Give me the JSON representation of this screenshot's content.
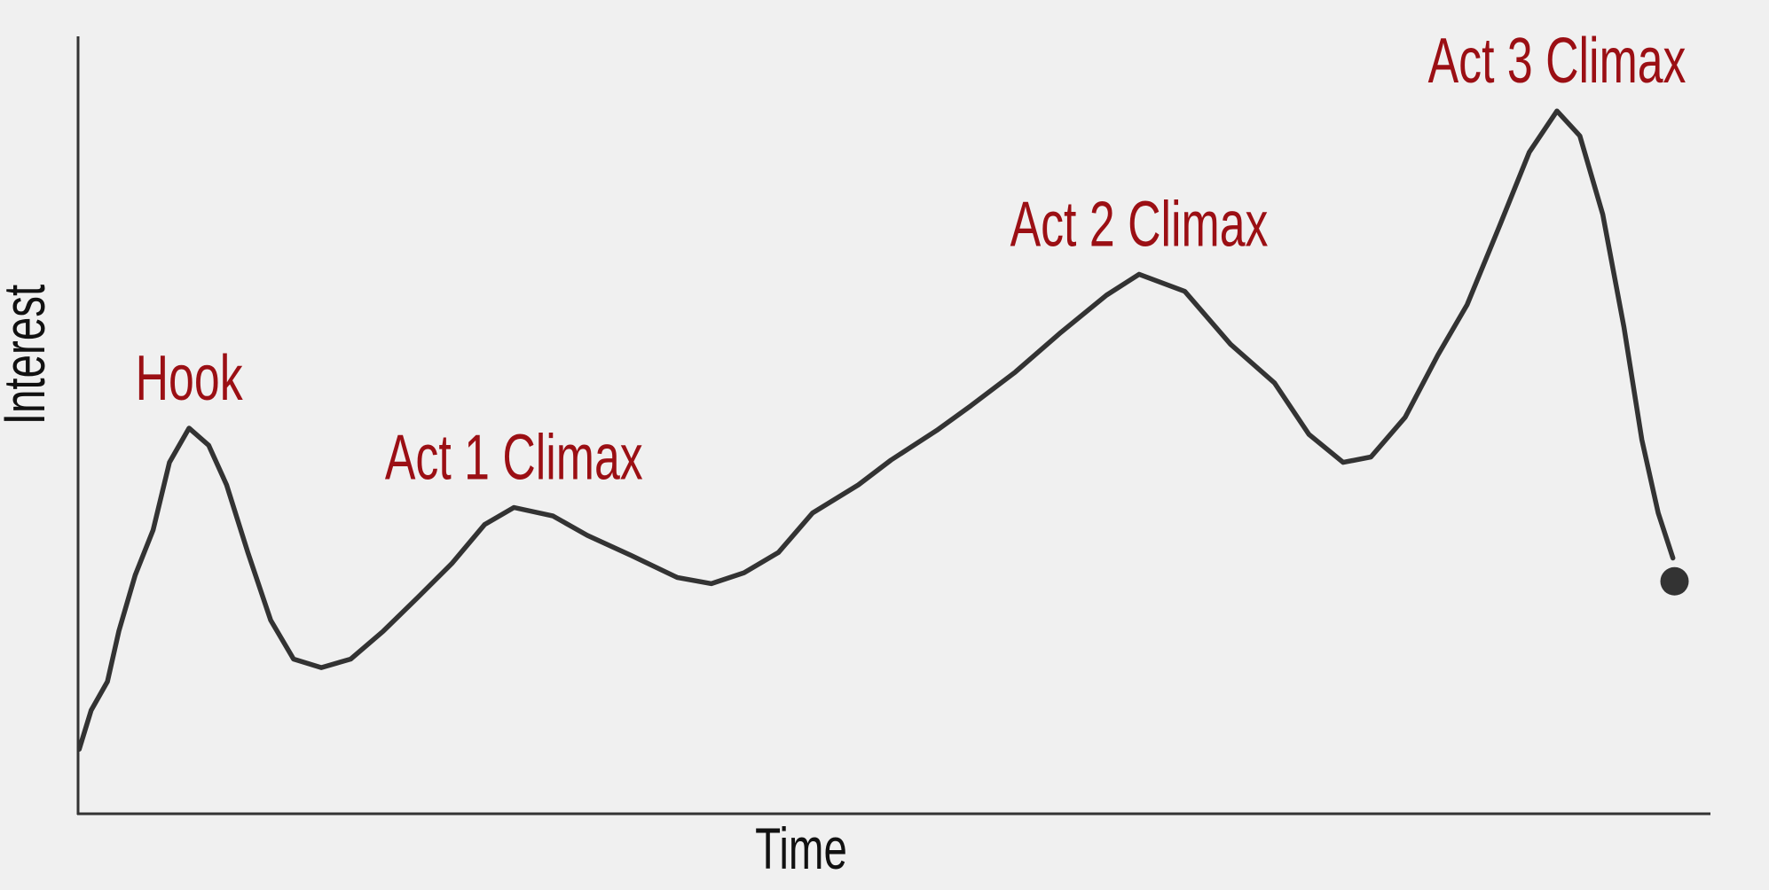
{
  "chart_data": {
    "type": "line",
    "xlabel": "Time",
    "ylabel": "Interest",
    "x": [
      0.07,
      0.8,
      1.8,
      2.5,
      3.5,
      4.6,
      5.6,
      6.8,
      8.0,
      9.1,
      10.4,
      11.8,
      13.2,
      14.9,
      16.7,
      18.7,
      20.8,
      22.9,
      24.9,
      26.7,
      29.1,
      31.2,
      33.9,
      36.7,
      38.8,
      40.8,
      42.9,
      45.0,
      47.8,
      49.8,
      52.6,
      54.7,
      57.4,
      60.2,
      63.0,
      65.0,
      67.8,
      70.6,
      73.3,
      75.4,
      77.5,
      79.2,
      81.3,
      83.3,
      85.1,
      87.1,
      88.9,
      90.6,
      92.0,
      93.4,
      94.7,
      95.8,
      96.8,
      97.7
    ],
    "values": [
      8.3,
      13.3,
      17.0,
      23.5,
      30.7,
      36.5,
      45.2,
      49.6,
      47.4,
      42.3,
      33.6,
      24.9,
      19.9,
      18.8,
      19.9,
      23.5,
      27.8,
      32.2,
      37.2,
      39.4,
      38.3,
      35.8,
      33.2,
      30.4,
      29.6,
      31.0,
      33.6,
      38.7,
      42.3,
      45.5,
      49.3,
      52.5,
      56.8,
      61.9,
      66.7,
      69.4,
      67.2,
      60.4,
      55.4,
      48.8,
      45.2,
      45.9,
      51.0,
      59.0,
      65.5,
      75.7,
      85.1,
      90.4,
      87.2,
      77.1,
      62.6,
      48.1,
      38.7,
      32.9
    ],
    "end_point": {
      "x": 97.8,
      "y": 29.9
    },
    "color": "#333333",
    "annotations": [
      "Hook",
      "Act 1 Climax",
      "Act 2 Climax",
      "Act 3 Climax"
    ],
    "annotation_color": "#9b0f14",
    "xlim": [
      0,
      100
    ],
    "ylim": [
      0,
      100
    ]
  }
}
